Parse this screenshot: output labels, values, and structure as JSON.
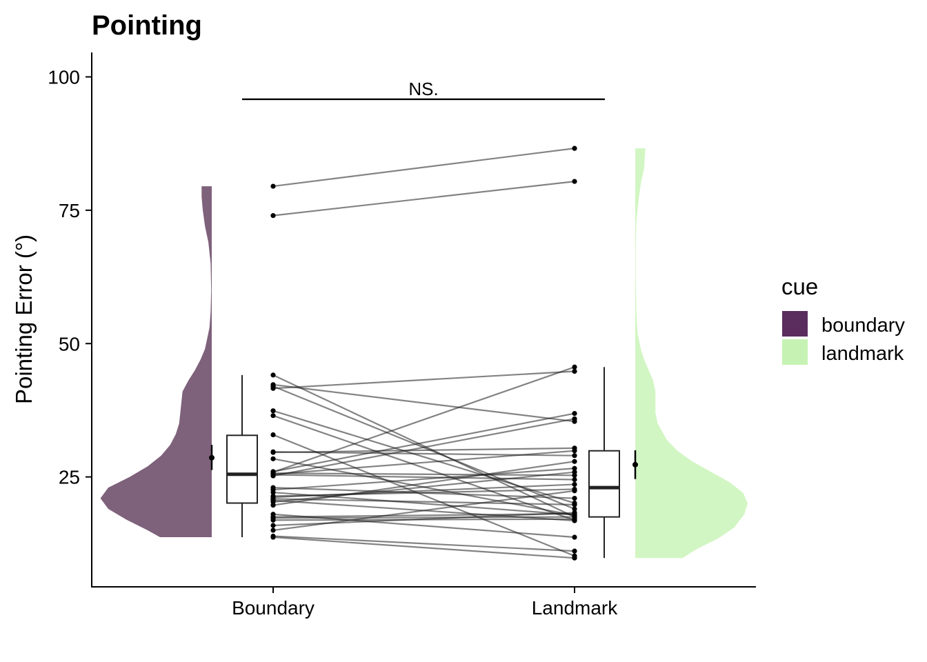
{
  "chart_data": {
    "type": "raincloud",
    "title": "Pointing",
    "xlabel": "",
    "ylabel": "Pointing Error (°)",
    "ylim": [
      10,
      105
    ],
    "yticks": [
      25,
      50,
      75,
      100
    ],
    "categories": [
      "Boundary",
      "Landmark"
    ],
    "grid": false,
    "legend": {
      "title": "cue",
      "position": "right",
      "entries": [
        {
          "label": "boundary",
          "color": "#5a2d5e"
        },
        {
          "label": "landmark",
          "color": "#c6f3b3"
        }
      ]
    },
    "significance": {
      "label": "NS.",
      "between": [
        "Boundary",
        "Landmark"
      ],
      "y": 95.8
    },
    "pairs": [
      [
        79.5,
        86.6
      ],
      [
        74.0,
        80.4
      ],
      [
        44.1,
        17.5
      ],
      [
        42.3,
        35.4
      ],
      [
        42.0,
        19.0
      ],
      [
        41.6,
        44.8
      ],
      [
        37.4,
        20.1
      ],
      [
        36.5,
        16.9
      ],
      [
        32.9,
        10.2
      ],
      [
        29.7,
        29.0
      ],
      [
        29.6,
        30.4
      ],
      [
        28.4,
        17.8
      ],
      [
        26.0,
        36.9
      ],
      [
        25.9,
        45.6
      ],
      [
        25.7,
        25.3
      ],
      [
        25.5,
        29.9
      ],
      [
        25.4,
        24.5
      ],
      [
        25.2,
        35.9
      ],
      [
        23.0,
        21.0
      ],
      [
        22.6,
        26.6
      ],
      [
        22.1,
        17.9
      ],
      [
        21.4,
        22.7
      ],
      [
        21.2,
        23.6
      ],
      [
        20.9,
        19.8
      ],
      [
        20.6,
        16.8
      ],
      [
        20.3,
        25.9
      ],
      [
        19.7,
        27.9
      ],
      [
        17.5,
        18.1
      ],
      [
        17.3,
        17.5
      ],
      [
        16.9,
        17.1
      ],
      [
        15.0,
        22.4
      ],
      [
        13.9,
        11.1
      ],
      [
        13.7,
        9.8
      ],
      [
        15.9,
        18.3
      ],
      [
        18.0,
        13.7
      ]
    ],
    "boxplots": [
      {
        "category": "Boundary",
        "whisker_low": 13.7,
        "q1": 20.1,
        "median": 25.5,
        "q3": 32.8,
        "whisker_high": 44.1
      },
      {
        "category": "Landmark",
        "whisker_low": 9.8,
        "q1": 17.5,
        "median": 23.0,
        "q3": 29.9,
        "whisker_high": 45.6
      }
    ],
    "mean_se": [
      {
        "category": "Boundary",
        "mean": 28.6,
        "low": 26.3,
        "high": 31.0
      },
      {
        "category": "Landmark",
        "mean": 27.3,
        "low": 24.6,
        "high": 30.0
      }
    ],
    "densities": [
      {
        "category": "Boundary",
        "color": "#7e617b",
        "side": "left",
        "profile": [
          [
            13.7,
            0.46
          ],
          [
            15,
            0.57
          ],
          [
            17,
            0.76
          ],
          [
            19,
            0.92
          ],
          [
            21,
            0.99
          ],
          [
            23,
            0.92
          ],
          [
            25,
            0.73
          ],
          [
            27,
            0.57
          ],
          [
            29,
            0.45
          ],
          [
            31,
            0.37
          ],
          [
            33,
            0.32
          ],
          [
            35,
            0.29
          ],
          [
            37,
            0.28
          ],
          [
            39,
            0.27
          ],
          [
            41,
            0.26
          ],
          [
            43,
            0.21
          ],
          [
            45,
            0.15
          ],
          [
            47,
            0.1
          ],
          [
            49,
            0.06
          ],
          [
            51,
            0.04
          ],
          [
            53,
            0.02
          ],
          [
            56,
            0.01
          ],
          [
            60,
            0.005
          ],
          [
            65,
            0.01
          ],
          [
            69,
            0.03
          ],
          [
            72,
            0.06
          ],
          [
            75,
            0.08
          ],
          [
            77.5,
            0.09
          ],
          [
            79.5,
            0.09
          ]
        ]
      },
      {
        "category": "Landmark",
        "color": "#d2f6c3",
        "side": "right",
        "profile": [
          [
            9.8,
            0.42
          ],
          [
            11.5,
            0.55
          ],
          [
            13.5,
            0.74
          ],
          [
            15.5,
            0.88
          ],
          [
            18,
            0.97
          ],
          [
            20,
            1.0
          ],
          [
            22,
            0.96
          ],
          [
            24,
            0.84
          ],
          [
            26,
            0.67
          ],
          [
            28,
            0.5
          ],
          [
            30,
            0.37
          ],
          [
            32,
            0.28
          ],
          [
            35,
            0.2
          ],
          [
            37,
            0.18
          ],
          [
            39,
            0.18
          ],
          [
            41,
            0.18
          ],
          [
            43,
            0.16
          ],
          [
            45,
            0.12
          ],
          [
            47,
            0.08
          ],
          [
            49,
            0.05
          ],
          [
            52,
            0.02
          ],
          [
            56,
            0.01
          ],
          [
            62,
            0.005
          ],
          [
            68,
            0.005
          ],
          [
            73,
            0.01
          ],
          [
            77,
            0.03
          ],
          [
            80,
            0.05
          ],
          [
            83,
            0.08
          ],
          [
            86.6,
            0.09
          ]
        ]
      }
    ]
  }
}
